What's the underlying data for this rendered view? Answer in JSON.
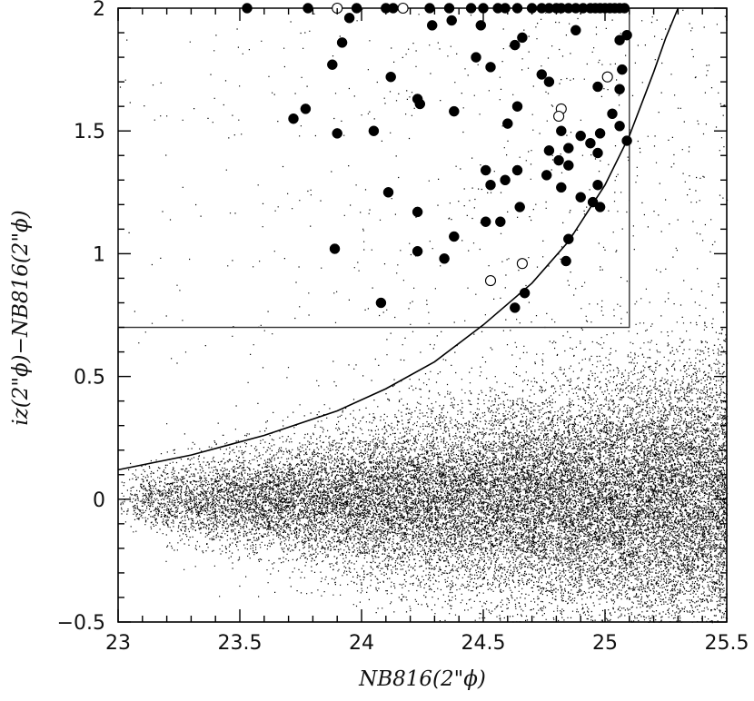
{
  "chart_data": {
    "type": "scatter",
    "title": "",
    "xlabel": "NB816(2\"ϕ)",
    "ylabel": "iz(2\"ϕ)−NB816(2\"ϕ)",
    "xlim": [
      23,
      25.5
    ],
    "ylim": [
      -0.5,
      2
    ],
    "x_ticks": [
      23,
      23.5,
      24,
      24.5,
      25,
      25.5
    ],
    "x_tick_labels": [
      "23",
      "23.5",
      "24",
      "24.5",
      "25",
      "25.5"
    ],
    "y_ticks": [
      -0.5,
      0,
      0.5,
      1,
      1.5,
      2
    ],
    "y_tick_labels": [
      "−0.5",
      "0",
      "0.5",
      "1",
      "1.5",
      "2"
    ],
    "grid": false,
    "selection_box": {
      "x": [
        23,
        25.1
      ],
      "y": [
        0.7,
        2
      ]
    },
    "limit_curve": {
      "description": "color-limit curve",
      "x": [
        23.0,
        23.3,
        23.6,
        23.9,
        24.1,
        24.3,
        24.5,
        24.7,
        24.85,
        25.0,
        25.1,
        25.2,
        25.25,
        25.3
      ],
      "y": [
        0.12,
        0.18,
        0.26,
        0.36,
        0.45,
        0.56,
        0.71,
        0.88,
        1.05,
        1.28,
        1.48,
        1.74,
        1.88,
        2.0
      ]
    },
    "background_points": {
      "description": "dense field of all detected objects, centered near color 0",
      "center_y": 0.0
    },
    "series": [
      {
        "marker": "filled-circle",
        "points": [
          [
            23.53,
            2.0
          ],
          [
            23.78,
            2.0
          ],
          [
            23.98,
            2.0
          ],
          [
            24.1,
            2.0
          ],
          [
            24.13,
            2.0
          ],
          [
            24.28,
            2.0
          ],
          [
            24.36,
            2.0
          ],
          [
            24.45,
            2.0
          ],
          [
            24.5,
            2.0
          ],
          [
            24.56,
            2.0
          ],
          [
            24.59,
            2.0
          ],
          [
            24.64,
            2.0
          ],
          [
            24.7,
            2.0
          ],
          [
            24.74,
            2.0
          ],
          [
            24.77,
            2.0
          ],
          [
            24.8,
            2.0
          ],
          [
            24.82,
            2.0
          ],
          [
            24.85,
            2.0
          ],
          [
            24.88,
            2.0
          ],
          [
            24.91,
            2.0
          ],
          [
            24.94,
            2.0
          ],
          [
            24.96,
            2.0
          ],
          [
            24.98,
            2.0
          ],
          [
            25.0,
            2.0
          ],
          [
            25.02,
            2.0
          ],
          [
            25.04,
            2.0
          ],
          [
            25.06,
            2.0
          ],
          [
            25.08,
            2.0
          ],
          [
            24.37,
            1.95
          ],
          [
            24.29,
            1.93
          ],
          [
            24.49,
            1.93
          ],
          [
            24.88,
            1.91
          ],
          [
            23.95,
            1.96
          ],
          [
            25.09,
            1.89
          ],
          [
            25.06,
            1.87
          ],
          [
            24.66,
            1.88
          ],
          [
            24.63,
            1.85
          ],
          [
            23.92,
            1.86
          ],
          [
            24.47,
            1.8
          ],
          [
            23.88,
            1.77
          ],
          [
            24.53,
            1.76
          ],
          [
            25.07,
            1.75
          ],
          [
            24.12,
            1.72
          ],
          [
            24.74,
            1.73
          ],
          [
            24.77,
            1.7
          ],
          [
            25.06,
            1.67
          ],
          [
            24.97,
            1.68
          ],
          [
            24.23,
            1.63
          ],
          [
            24.24,
            1.61
          ],
          [
            24.64,
            1.6
          ],
          [
            23.77,
            1.59
          ],
          [
            24.38,
            1.58
          ],
          [
            23.72,
            1.55
          ],
          [
            25.03,
            1.57
          ],
          [
            24.6,
            1.53
          ],
          [
            25.06,
            1.52
          ],
          [
            24.05,
            1.5
          ],
          [
            23.9,
            1.49
          ],
          [
            24.82,
            1.5
          ],
          [
            24.9,
            1.48
          ],
          [
            24.98,
            1.49
          ],
          [
            25.09,
            1.46
          ],
          [
            24.94,
            1.45
          ],
          [
            24.85,
            1.43
          ],
          [
            24.77,
            1.42
          ],
          [
            24.97,
            1.41
          ],
          [
            24.81,
            1.38
          ],
          [
            24.85,
            1.36
          ],
          [
            24.64,
            1.34
          ],
          [
            24.51,
            1.34
          ],
          [
            24.76,
            1.32
          ],
          [
            24.59,
            1.3
          ],
          [
            24.53,
            1.28
          ],
          [
            24.97,
            1.28
          ],
          [
            24.82,
            1.27
          ],
          [
            24.11,
            1.25
          ],
          [
            24.9,
            1.23
          ],
          [
            24.95,
            1.21
          ],
          [
            24.98,
            1.19
          ],
          [
            24.65,
            1.19
          ],
          [
            24.23,
            1.17
          ],
          [
            24.51,
            1.13
          ],
          [
            24.57,
            1.13
          ],
          [
            24.38,
            1.07
          ],
          [
            24.85,
            1.06
          ],
          [
            23.89,
            1.02
          ],
          [
            24.23,
            1.01
          ],
          [
            24.34,
            0.98
          ],
          [
            24.84,
            0.97
          ],
          [
            24.67,
            0.84
          ],
          [
            24.08,
            0.8
          ],
          [
            24.63,
            0.78
          ]
        ]
      },
      {
        "marker": "open-circle",
        "points": [
          [
            23.9,
            2.0
          ],
          [
            24.17,
            2.0
          ],
          [
            25.01,
            1.72
          ],
          [
            24.82,
            1.59
          ],
          [
            24.81,
            1.56
          ],
          [
            24.66,
            0.96
          ],
          [
            24.53,
            0.89
          ]
        ]
      }
    ]
  }
}
